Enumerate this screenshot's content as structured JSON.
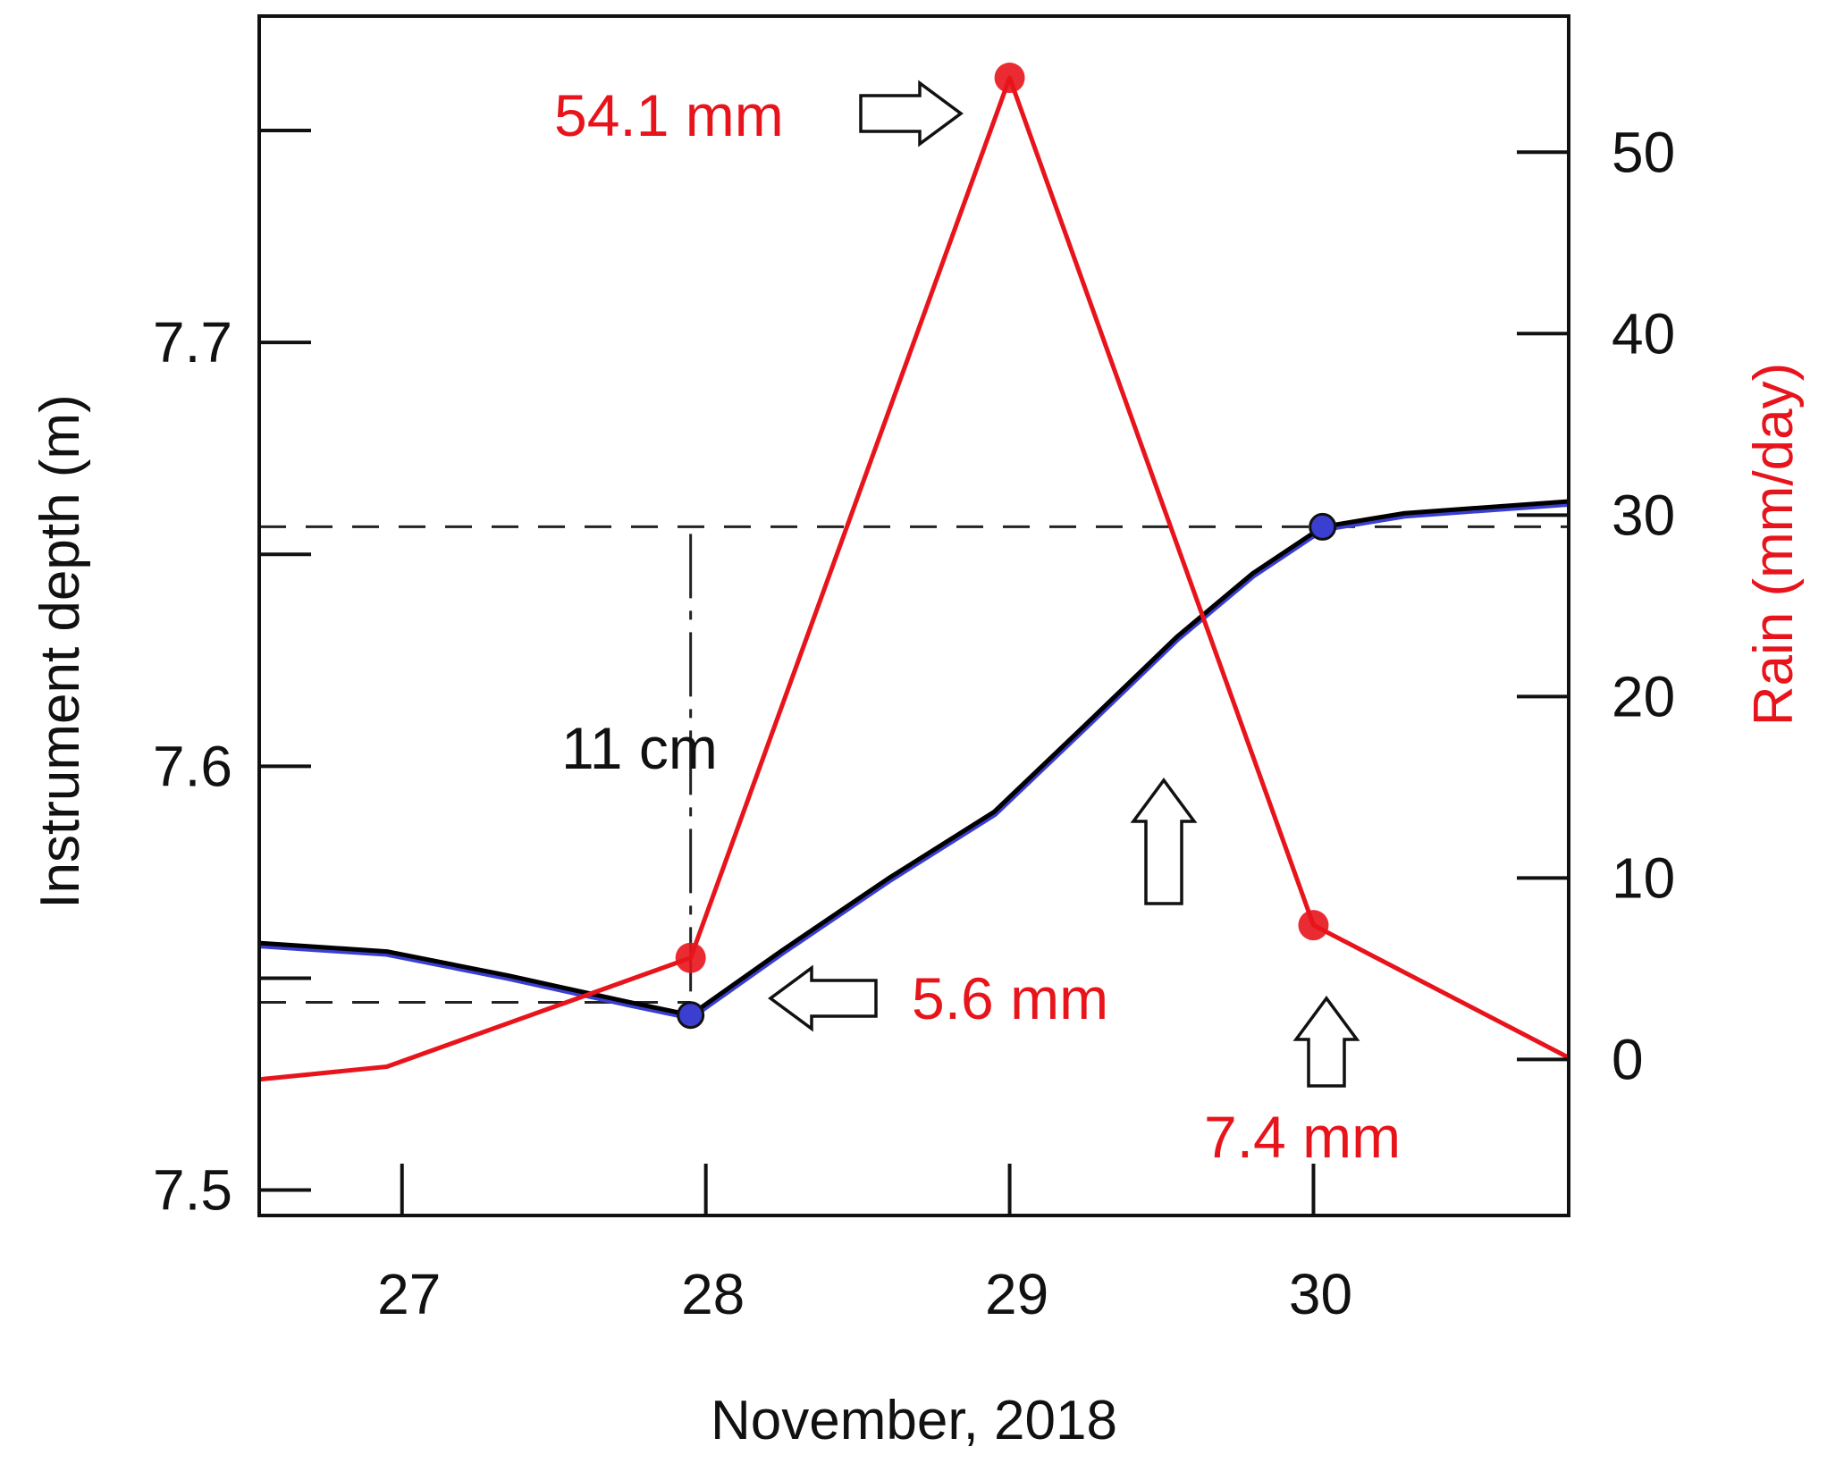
{
  "chart_data": {
    "type": "line",
    "xlabel": "November, 2018",
    "x_ticks": [
      27,
      28,
      29,
      30
    ],
    "x_range": [
      26.53,
      30.84
    ],
    "left_axis": {
      "label": "Instrument depth (m)",
      "range": [
        7.494,
        7.777
      ],
      "ticks": [
        7.5,
        7.6,
        7.7
      ],
      "tick_labels": [
        "7.5",
        "7.6",
        "7.7"
      ],
      "minor_ticks": [
        7.55,
        7.65,
        7.75
      ]
    },
    "right_axis": {
      "label": "Rain (mm/day)",
      "range": [
        -8.6,
        57.5
      ],
      "ticks": [
        0,
        10,
        20,
        30,
        40,
        50
      ],
      "tick_labels": [
        "0",
        "10",
        "20",
        "30",
        "40",
        "50"
      ],
      "color": "#e8141c"
    },
    "series": [
      {
        "axis": "left",
        "color": "#000000",
        "marker_color": "#3a3fd0",
        "x": [
          26.53,
          26.95,
          27.35,
          27.75,
          27.95,
          28.25,
          28.6,
          28.95,
          29.25,
          29.55,
          29.8,
          30.03,
          30.3,
          30.84
        ],
        "y": [
          7.5583,
          7.5563,
          7.5506,
          7.5443,
          7.5413,
          7.5565,
          7.5735,
          7.5893,
          7.6098,
          7.6305,
          7.6455,
          7.6565,
          7.6597,
          7.6625
        ],
        "markers_x": [
          27.95,
          30.03
        ],
        "markers_y": [
          7.5413,
          7.6565
        ]
      },
      {
        "axis": "right",
        "color": "#e8141c",
        "x": [
          26.53,
          26.95,
          27.95,
          29.0,
          30.0,
          30.84
        ],
        "y": [
          -1.1,
          -0.4,
          5.6,
          54.1,
          7.4,
          0.1
        ],
        "markers_x": [
          27.95,
          29.0,
          30.0
        ],
        "markers_y": [
          5.6,
          54.1,
          7.4
        ]
      }
    ],
    "reference_lines": [
      {
        "axis": "left",
        "y": 7.6565,
        "style": "dashed"
      },
      {
        "axis": "left",
        "y": 7.5443,
        "style": "dashed",
        "x_end": 27.95
      }
    ],
    "annotations": [
      {
        "text": "54.1 mm",
        "color": "#e8141c"
      },
      {
        "text": "5.6 mm",
        "color": "#e8141c"
      },
      {
        "text": "7.4 mm",
        "color": "#e8141c"
      },
      {
        "text": "11 cm",
        "color": "#111111"
      }
    ],
    "grid": false
  }
}
